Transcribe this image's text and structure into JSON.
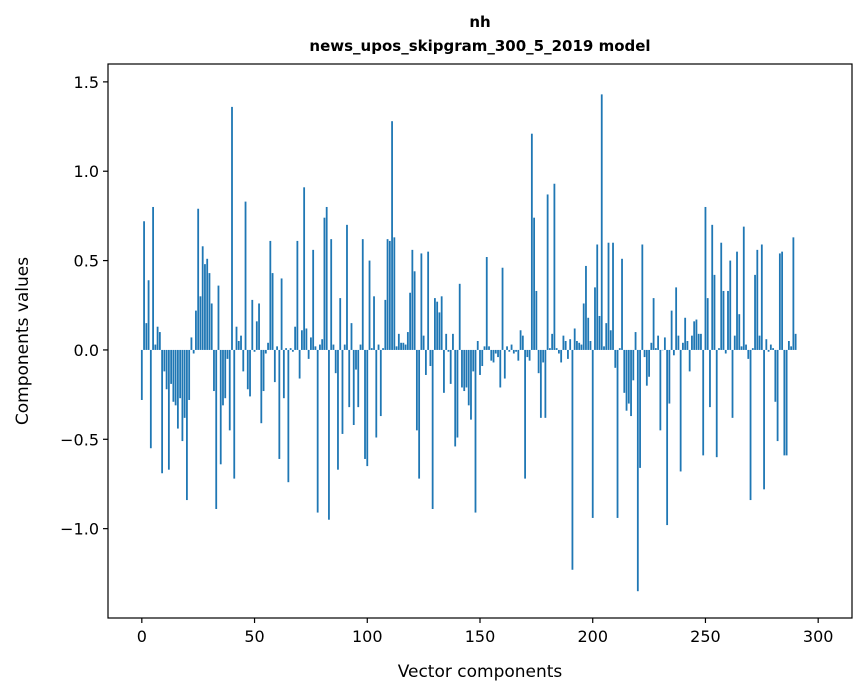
{
  "chart_data": {
    "type": "bar",
    "title_line1": "nh",
    "title_line2": "news_upos_skipgram_300_5_2019 model",
    "xlabel": "Vector components",
    "ylabel": "Components values",
    "xlim": [
      -15,
      315
    ],
    "ylim": [
      -1.5,
      1.6
    ],
    "xticks": [
      0,
      50,
      100,
      150,
      200,
      250,
      300
    ],
    "xtick_labels": [
      "0",
      "50",
      "100",
      "150",
      "200",
      "250",
      "300"
    ],
    "yticks": [
      -1.0,
      -0.5,
      0.0,
      0.5,
      1.0,
      1.5
    ],
    "ytick_labels": [
      "−1.0",
      "−0.5",
      "0.0",
      "0.5",
      "1.0",
      "1.5"
    ],
    "bar_color": "#1f77b4",
    "values": [
      -0.28,
      0.72,
      0.15,
      0.39,
      -0.55,
      0.8,
      0.03,
      0.13,
      0.1,
      -0.69,
      -0.12,
      -0.22,
      -0.67,
      -0.19,
      -0.29,
      -0.31,
      -0.44,
      -0.27,
      -0.51,
      -0.38,
      -0.84,
      -0.28,
      0.07,
      -0.02,
      0.22,
      0.79,
      0.3,
      0.58,
      0.48,
      0.51,
      0.43,
      0.26,
      -0.23,
      -0.89,
      0.36,
      -0.64,
      -0.31,
      -0.27,
      -0.05,
      -0.45,
      1.36,
      -0.72,
      0.13,
      0.05,
      0.08,
      -0.12,
      0.83,
      -0.22,
      -0.26,
      0.28,
      -0.01,
      0.16,
      0.26,
      -0.41,
      -0.23,
      -0.02,
      0.04,
      0.61,
      0.43,
      -0.18,
      0.02,
      -0.61,
      0.4,
      -0.27,
      0.01,
      -0.74,
      0.01,
      -0.01,
      0.13,
      0.61,
      -0.16,
      0.11,
      0.91,
      0.12,
      -0.05,
      0.07,
      0.56,
      0.02,
      -0.91,
      0.03,
      0.06,
      0.74,
      0.8,
      -0.95,
      0.62,
      0.03,
      -0.13,
      -0.67,
      0.29,
      -0.47,
      0.03,
      0.7,
      -0.32,
      0.15,
      -0.42,
      -0.11,
      -0.32,
      0.03,
      0.62,
      -0.61,
      -0.65,
      0.5,
      0.01,
      0.3,
      -0.49,
      0.03,
      -0.37,
      0.01,
      0.28,
      0.62,
      0.61,
      1.28,
      0.63,
      0.02,
      0.09,
      0.04,
      0.04,
      0.03,
      0.1,
      0.32,
      0.56,
      0.44,
      -0.45,
      -0.72,
      0.54,
      0.08,
      -0.14,
      0.55,
      -0.09,
      -0.89,
      0.29,
      0.27,
      0.21,
      0.3,
      -0.24,
      0.09,
      -0.01,
      -0.19,
      0.09,
      -0.54,
      -0.49,
      0.37,
      -0.21,
      -0.23,
      -0.21,
      -0.31,
      -0.39,
      -0.12,
      -0.91,
      0.05,
      -0.14,
      -0.09,
      0.02,
      0.52,
      0.02,
      -0.06,
      -0.07,
      -0.02,
      -0.04,
      -0.21,
      0.46,
      -0.16,
      0.02,
      -0.01,
      0.03,
      -0.02,
      -0.01,
      -0.06,
      0.11,
      0.08,
      -0.72,
      -0.04,
      -0.06,
      1.21,
      0.74,
      0.33,
      -0.13,
      -0.38,
      -0.07,
      -0.38,
      0.87,
      0.01,
      0.09,
      0.93,
      0.01,
      -0.02,
      -0.07,
      0.08,
      0.05,
      -0.05,
      0.06,
      -1.23,
      0.12,
      0.05,
      0.04,
      0.03,
      0.26,
      0.47,
      0.18,
      0.05,
      -0.94,
      0.35,
      0.59,
      0.19,
      1.43,
      0.02,
      0.15,
      0.6,
      0.11,
      0.6,
      -0.1,
      -0.94,
      0.01,
      0.51,
      -0.24,
      -0.34,
      -0.3,
      -0.37,
      -0.17,
      0.1,
      -1.35,
      -0.66,
      0.59,
      -0.04,
      -0.2,
      -0.15,
      0.04,
      0.29,
      0.01,
      0.08,
      -0.45,
      0.0,
      0.07,
      -0.98,
      -0.3,
      0.22,
      -0.03,
      0.35,
      0.08,
      -0.68,
      0.04,
      0.18,
      0.05,
      -0.12,
      0.08,
      0.16,
      0.17,
      0.09,
      0.09,
      -0.59,
      0.8,
      0.29,
      -0.32,
      0.7,
      0.42,
      -0.6,
      0.01,
      0.6,
      0.33,
      -0.02,
      0.33,
      0.5,
      -0.38,
      0.08,
      0.55,
      0.2,
      0.02,
      0.69,
      0.03,
      -0.05,
      -0.84,
      0.01,
      0.42,
      0.56,
      0.08,
      0.59,
      -0.78,
      0.06,
      -0.01,
      0.03,
      0.01,
      -0.29,
      -0.51,
      0.54,
      0.55,
      -0.59,
      -0.59,
      0.05,
      0.02,
      0.63,
      0.09
    ]
  }
}
